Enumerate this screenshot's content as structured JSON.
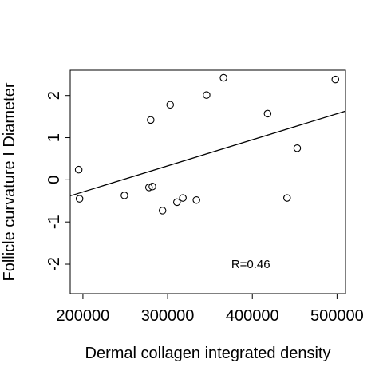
{
  "chart_data": {
    "type": "scatter",
    "title": "",
    "xlabel": "Dermal collagen integrated density",
    "ylabel": "Follicle curvature I Diameter",
    "xlim": [
      185000,
      510000
    ],
    "ylim": [
      -2.7,
      2.6
    ],
    "xticks": [
      200000,
      300000,
      400000,
      500000
    ],
    "yticks": [
      -2,
      -1,
      0,
      1,
      2
    ],
    "grid": false,
    "legend": "none",
    "annotation": "R=0.46",
    "annotation_at": [
      400000,
      -2
    ],
    "points": [
      {
        "x": 195000,
        "y": 0.24
      },
      {
        "x": 196000,
        "y": -0.45
      },
      {
        "x": 249000,
        "y": -0.37
      },
      {
        "x": 278000,
        "y": -0.18
      },
      {
        "x": 280000,
        "y": 1.42
      },
      {
        "x": 282000,
        "y": -0.16
      },
      {
        "x": 294000,
        "y": -0.73
      },
      {
        "x": 303000,
        "y": 1.78
      },
      {
        "x": 311000,
        "y": -0.53
      },
      {
        "x": 318000,
        "y": -0.43
      },
      {
        "x": 334000,
        "y": -0.48
      },
      {
        "x": 346000,
        "y": 2.01
      },
      {
        "x": 366000,
        "y": 2.42
      },
      {
        "x": 418000,
        "y": 1.57
      },
      {
        "x": 441000,
        "y": -0.43
      },
      {
        "x": 453000,
        "y": 0.75
      },
      {
        "x": 498000,
        "y": 2.38
      }
    ],
    "fit_line": {
      "x": [
        185000,
        510000
      ],
      "y": [
        -0.38,
        1.63
      ]
    },
    "colors": {
      "points": "#000000",
      "line": "#000000"
    }
  }
}
